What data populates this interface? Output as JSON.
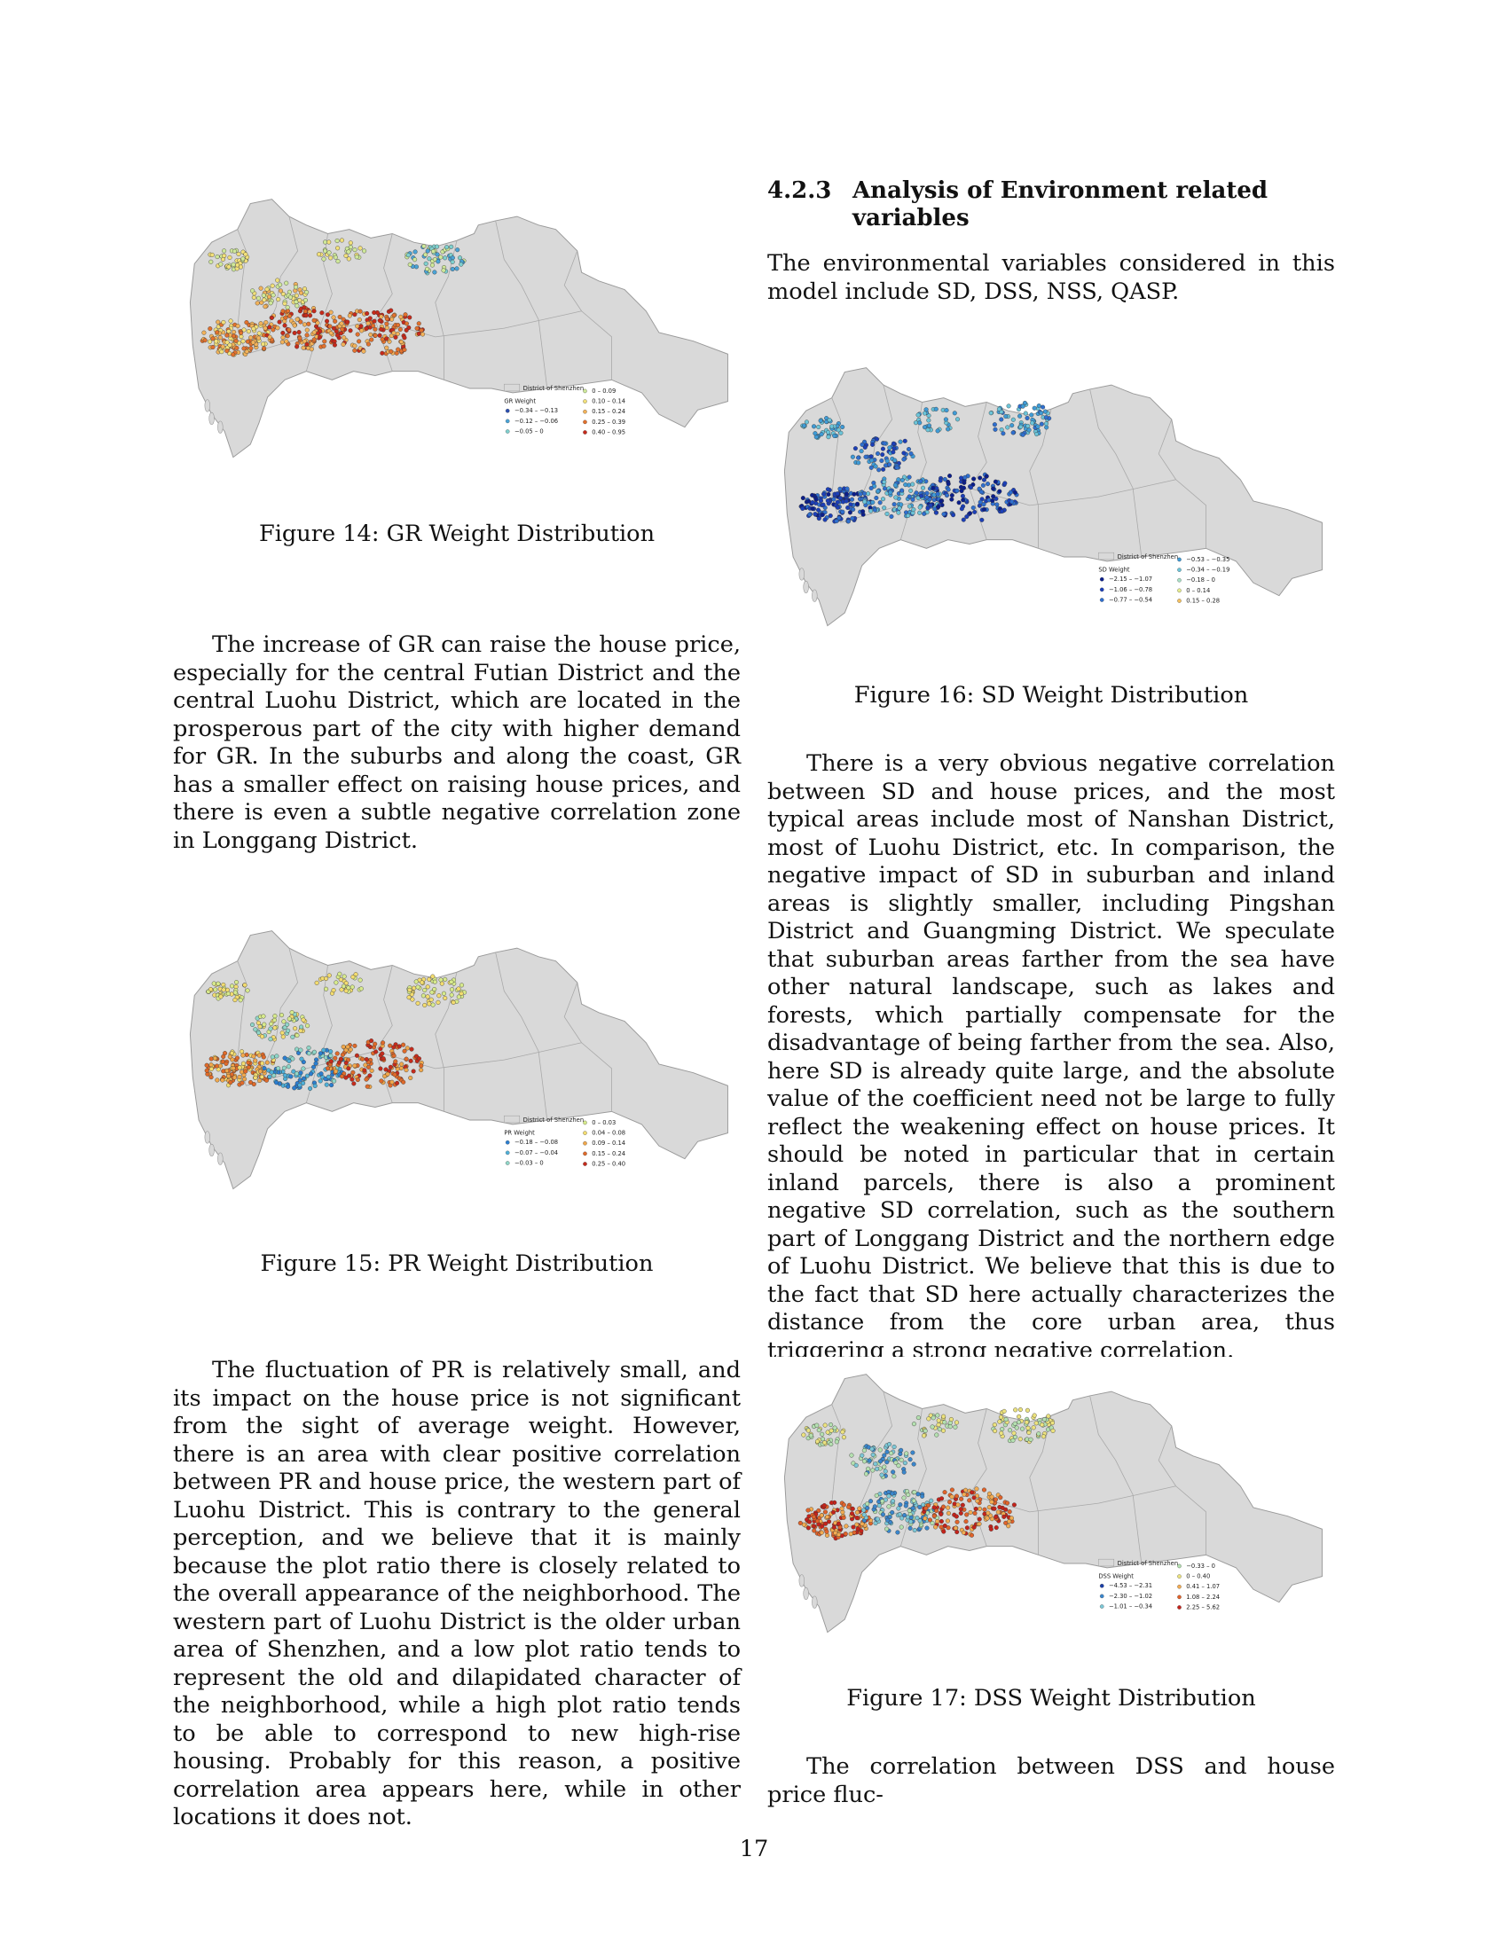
{
  "figures": [
    {
      "id": "fig14",
      "caption": "Figure 14: GR Weight Distribution",
      "legend_title": "GR Weight",
      "district": "District of Shenzhen",
      "bins": [
        "−0.34 – −0.13",
        "−0.12 – −0.06",
        "−0.05 – 0",
        "0 – 0.09",
        "0.10 – 0.14",
        "0.15 – 0.24",
        "0.25 – 0.39",
        "0.40 – 0.95"
      ],
      "colors": [
        "#2b4fb0",
        "#4aa3d6",
        "#7fd0cf",
        "#cfe89a",
        "#f2e07a",
        "#f2b25a",
        "#e2712d",
        "#c62a1b"
      ]
    },
    {
      "id": "fig15",
      "caption": "Figure 15: PR Weight Distribution",
      "legend_title": "PR Weight",
      "district": "District of Shenzhen",
      "bins": [
        "−0.18 – −0.08",
        "−0.07 – −0.04",
        "−0.03 – 0",
        "0 – 0.03",
        "0.04 – 0.08",
        "0.09 – 0.14",
        "0.15 – 0.24",
        "0.25 – 0.40"
      ],
      "colors": [
        "#2b7ed0",
        "#4fb0d8",
        "#8fd6c8",
        "#d7ea8c",
        "#f3dc70",
        "#f0a84c",
        "#df6a2a",
        "#c52b1c"
      ]
    },
    {
      "id": "fig16",
      "caption": "Figure 16: SD Weight Distribution",
      "legend_title": "SD Weight",
      "district": "District of Shenzhen",
      "bins": [
        "−2.15 – −1.07",
        "−1.06 – −0.78",
        "−0.77 – −0.54",
        "−0.53 – −0.35",
        "−0.34 – −0.19",
        "−0.18 – 0",
        "0 – 0.14",
        "0.15 – 0.28"
      ],
      "colors": [
        "#0b1e8c",
        "#1c3fb8",
        "#2f6fcf",
        "#3f9bd6",
        "#6cc4d8",
        "#a9e0c6",
        "#e6ec8e",
        "#f4c05f"
      ]
    },
    {
      "id": "fig17",
      "caption": "Figure 17: DSS Weight Distribution",
      "legend_title": "DSS Weight",
      "district": "District of Shenzhen",
      "bins": [
        "−4.53 – −2.31",
        "−2.30 – −1.02",
        "−1.01 – −0.34",
        "−0.33 – 0",
        "0 – 0.40",
        "0.41 – 1.07",
        "1.08 – 2.24",
        "2.25 – 5.62"
      ],
      "colors": [
        "#1a3fa8",
        "#3a86cc",
        "#7cc7d6",
        "#b4e0b0",
        "#ece27e",
        "#f2ab52",
        "#e1632a",
        "#c4231b"
      ]
    }
  ],
  "left": {
    "p1": "The increase of GR can raise the house price, especially for the central Futian District and the central Luohu District, which are located in the prosperous part of the city with higher demand for GR. In the suburbs and along the coast, GR has a smaller effect on raising house prices, and there is even a subtle negative correlation zone in Longgang District.",
    "p2": "The fluctuation of PR is relatively small, and its impact on the house price is not significant from the sight of average weight. However, there is an area with clear positive correlation between PR and house price, the western part of Luohu District. This is contrary to the general perception, and we believe that it is mainly because the plot ratio there is closely related to the overall appearance of the neighborhood. The western part of Luohu District is the older urban area of Shenzhen, and a low plot ratio tends to represent the old and dilapidated character of the neighborhood, while a high plot ratio tends to be able to correspond to new high-rise housing. Probably for this reason, a positive correlation area appears here, while in other locations it does not."
  },
  "right": {
    "heading_num": "4.2.3",
    "heading_text": "Analysis of Environment related variables",
    "p1": "The environmental variables considered in this model include SD, DSS, NSS, QASP.",
    "p2": "There is a very obvious negative correlation between SD and house prices, and the most typical areas include most of Nanshan District, most of Luohu District, etc. In comparison, the negative impact of SD in suburban and inland areas is slightly smaller, including Pingshan District and Guangming District. We speculate that suburban areas farther from the sea have other natural landscape, such as lakes and forests, which partially compensate for the disadvantage of being farther from the sea. Also, here SD is already quite large, and the absolute value of the coefficient need not be large to fully reflect the weakening effect on house prices. It should be noted in particular that in certain inland parcels, there is also a prominent negative SD correlation, such as the southern part of Longgang District and the northern edge of Luohu District. We believe that this is due to the fact that SD here actually characterizes the distance from the core urban area, thus triggering a strong negative correlation.",
    "p3": "The correlation between DSS and house price fluc-"
  },
  "page_number": "17"
}
